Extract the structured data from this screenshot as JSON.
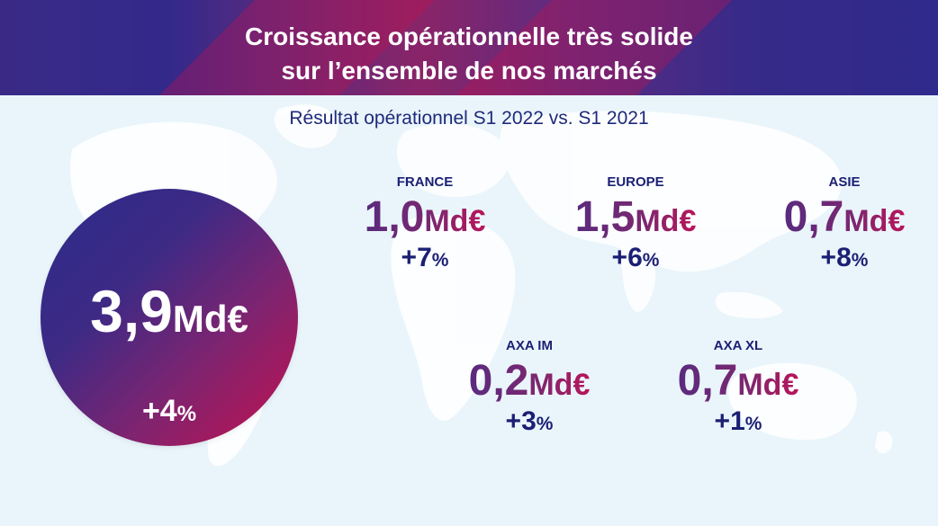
{
  "header": {
    "title_line1": "Croissance opérationnelle très solide",
    "title_line2": "sur l’ensemble de nos marchés"
  },
  "subtitle": "Résultat opérationnel S1 2022 vs. S1 2021",
  "total": {
    "amount": "3,9",
    "unit": "Md€",
    "growth": "+4",
    "growth_unit": "%"
  },
  "regions": [
    {
      "label": "FRANCE",
      "amount": "1,0",
      "unit": "Md€",
      "growth": "+7",
      "growth_unit": "%"
    },
    {
      "label": "EUROPE",
      "amount": "1,5",
      "unit": "Md€",
      "growth": "+6",
      "growth_unit": "%"
    },
    {
      "label": "ASIE",
      "amount": "0,7",
      "unit": "Md€",
      "growth": "+8",
      "growth_unit": "%"
    },
    {
      "label": "AXA IM",
      "amount": "0,2",
      "unit": "Md€",
      "growth": "+3",
      "growth_unit": "%"
    },
    {
      "label": "AXA XL",
      "amount": "0,7",
      "unit": "Md€",
      "growth": "+1",
      "growth_unit": "%"
    }
  ],
  "colors": {
    "navy": "#1b1f73",
    "accent_red": "#c4104e",
    "purple": "#5a2a7e",
    "background": "#eaf5fb"
  }
}
